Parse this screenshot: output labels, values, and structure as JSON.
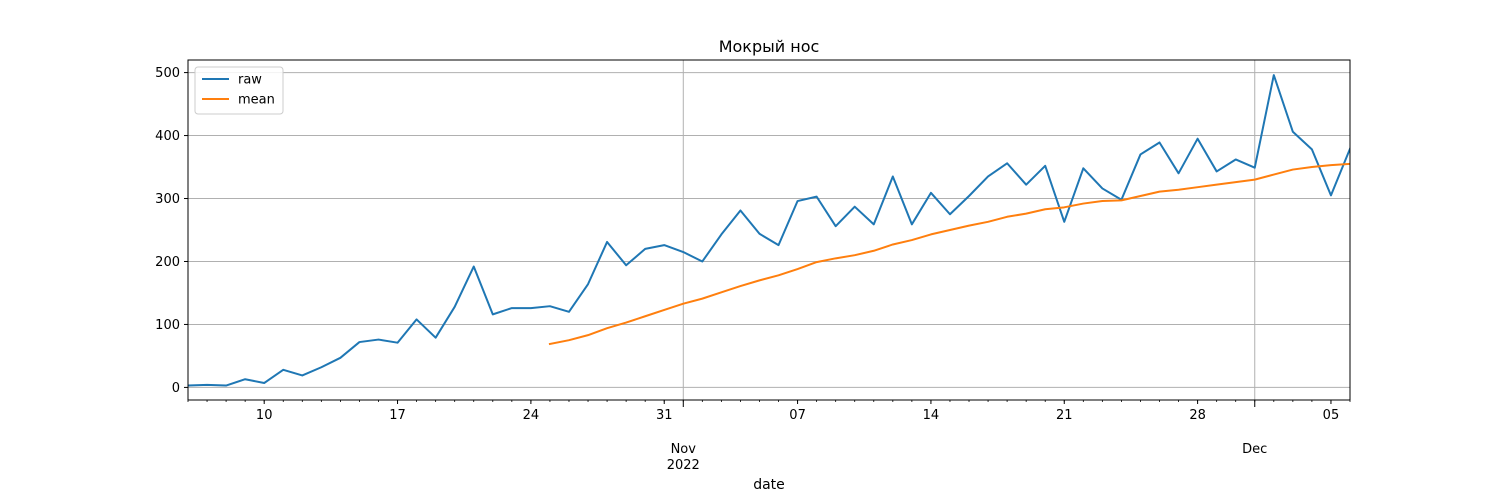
{
  "chart_data": {
    "type": "line",
    "title": "Мокрый нос",
    "xlabel": "date",
    "ylabel": "",
    "ylim": [
      -20,
      520
    ],
    "yticks": [
      0,
      100,
      200,
      300,
      400,
      500
    ],
    "xlim": [
      "2022-10-06",
      "2022-12-06"
    ],
    "x_tick_labels": [
      {
        "date": "2022-10-10",
        "label": "10"
      },
      {
        "date": "2022-10-17",
        "label": "17"
      },
      {
        "date": "2022-10-24",
        "label": "24"
      },
      {
        "date": "2022-10-31",
        "label": "31"
      },
      {
        "date": "2022-11-07",
        "label": "07"
      },
      {
        "date": "2022-11-14",
        "label": "14"
      },
      {
        "date": "2022-11-21",
        "label": "21"
      },
      {
        "date": "2022-11-28",
        "label": "28"
      },
      {
        "date": "2022-12-05",
        "label": "05"
      }
    ],
    "x_major_labels": [
      {
        "date": "2022-11-01",
        "label": "Nov",
        "sublabel": "2022"
      },
      {
        "date": "2022-12-01",
        "label": "Dec",
        "sublabel": ""
      }
    ],
    "grid": true,
    "legend_position": "top-left",
    "series": [
      {
        "name": "raw",
        "color": "#1f77b4",
        "points": [
          [
            "2022-10-06",
            3
          ],
          [
            "2022-10-07",
            4
          ],
          [
            "2022-10-08",
            3
          ],
          [
            "2022-10-09",
            13
          ],
          [
            "2022-10-10",
            7
          ],
          [
            "2022-10-11",
            28
          ],
          [
            "2022-10-12",
            19
          ],
          [
            "2022-10-13",
            32
          ],
          [
            "2022-10-14",
            47
          ],
          [
            "2022-10-15",
            72
          ],
          [
            "2022-10-16",
            76
          ],
          [
            "2022-10-17",
            71
          ],
          [
            "2022-10-18",
            108
          ],
          [
            "2022-10-19",
            79
          ],
          [
            "2022-10-20",
            128
          ],
          [
            "2022-10-21",
            192
          ],
          [
            "2022-10-22",
            116
          ],
          [
            "2022-10-23",
            126
          ],
          [
            "2022-10-24",
            126
          ],
          [
            "2022-10-25",
            129
          ],
          [
            "2022-10-26",
            120
          ],
          [
            "2022-10-27",
            164
          ],
          [
            "2022-10-28",
            231
          ],
          [
            "2022-10-29",
            194
          ],
          [
            "2022-10-30",
            220
          ],
          [
            "2022-10-31",
            226
          ],
          [
            "2022-11-01",
            215
          ],
          [
            "2022-11-02",
            200
          ],
          [
            "2022-11-03",
            243
          ],
          [
            "2022-11-04",
            281
          ],
          [
            "2022-11-05",
            244
          ],
          [
            "2022-11-06",
            226
          ],
          [
            "2022-11-07",
            296
          ],
          [
            "2022-11-08",
            303
          ],
          [
            "2022-11-09",
            256
          ],
          [
            "2022-11-10",
            287
          ],
          [
            "2022-11-11",
            259
          ],
          [
            "2022-11-12",
            335
          ],
          [
            "2022-11-13",
            259
          ],
          [
            "2022-11-14",
            309
          ],
          [
            "2022-11-15",
            275
          ],
          [
            "2022-11-16",
            304
          ],
          [
            "2022-11-17",
            335
          ],
          [
            "2022-11-18",
            356
          ],
          [
            "2022-11-19",
            322
          ],
          [
            "2022-11-20",
            352
          ],
          [
            "2022-11-21",
            263
          ],
          [
            "2022-11-22",
            348
          ],
          [
            "2022-11-23",
            316
          ],
          [
            "2022-11-24",
            298
          ],
          [
            "2022-11-25",
            370
          ],
          [
            "2022-11-26",
            389
          ],
          [
            "2022-11-27",
            340
          ],
          [
            "2022-11-28",
            395
          ],
          [
            "2022-11-29",
            343
          ],
          [
            "2022-11-30",
            362
          ],
          [
            "2022-12-01",
            349
          ],
          [
            "2022-12-02",
            496
          ],
          [
            "2022-12-03",
            406
          ],
          [
            "2022-12-04",
            378
          ],
          [
            "2022-12-05",
            305
          ],
          [
            "2022-12-06",
            379
          ]
        ]
      },
      {
        "name": "mean",
        "color": "#ff7f0e",
        "points": [
          [
            "2022-10-25",
            69
          ],
          [
            "2022-10-26",
            75
          ],
          [
            "2022-10-27",
            83
          ],
          [
            "2022-10-28",
            94
          ],
          [
            "2022-10-29",
            103
          ],
          [
            "2022-10-30",
            113
          ],
          [
            "2022-10-31",
            123
          ],
          [
            "2022-11-01",
            133
          ],
          [
            "2022-11-02",
            141
          ],
          [
            "2022-11-03",
            151
          ],
          [
            "2022-11-04",
            161
          ],
          [
            "2022-11-05",
            170
          ],
          [
            "2022-11-06",
            178
          ],
          [
            "2022-11-07",
            188
          ],
          [
            "2022-11-08",
            199
          ],
          [
            "2022-11-09",
            205
          ],
          [
            "2022-11-10",
            210
          ],
          [
            "2022-11-11",
            217
          ],
          [
            "2022-11-12",
            227
          ],
          [
            "2022-11-13",
            234
          ],
          [
            "2022-11-14",
            243
          ],
          [
            "2022-11-15",
            250
          ],
          [
            "2022-11-16",
            257
          ],
          [
            "2022-11-17",
            263
          ],
          [
            "2022-11-18",
            271
          ],
          [
            "2022-11-19",
            276
          ],
          [
            "2022-11-20",
            283
          ],
          [
            "2022-11-21",
            286
          ],
          [
            "2022-11-22",
            292
          ],
          [
            "2022-11-23",
            296
          ],
          [
            "2022-11-24",
            297
          ],
          [
            "2022-11-25",
            304
          ],
          [
            "2022-11-26",
            311
          ],
          [
            "2022-11-27",
            314
          ],
          [
            "2022-11-28",
            318
          ],
          [
            "2022-11-29",
            322
          ],
          [
            "2022-11-30",
            326
          ],
          [
            "2022-12-01",
            330
          ],
          [
            "2022-12-02",
            338
          ],
          [
            "2022-12-03",
            346
          ],
          [
            "2022-12-04",
            350
          ],
          [
            "2022-12-05",
            353
          ],
          [
            "2022-12-06",
            355
          ]
        ]
      }
    ]
  }
}
